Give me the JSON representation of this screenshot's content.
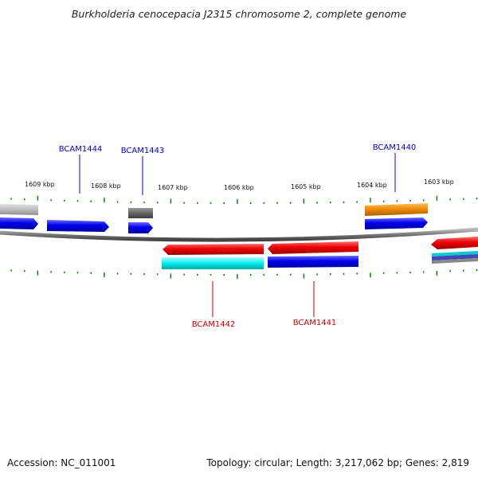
{
  "title": "Burkholderia cenocepacia J2315 chromosome 2, complete genome",
  "footer": {
    "accession": "Accession: NC_011001",
    "topology": "Topology: circular; Length: 3,217,062 bp; Genes: 2,819"
  },
  "scale_labels": [
    {
      "id": "s1609",
      "text": "1609 kbp"
    },
    {
      "id": "s1608",
      "text": "1608 kbp"
    },
    {
      "id": "s1607",
      "text": "1607 kbp"
    },
    {
      "id": "s1606",
      "text": "1606 kbp"
    },
    {
      "id": "s1605",
      "text": "1605 kbp"
    },
    {
      "id": "s1604",
      "text": "1604 kbp"
    },
    {
      "id": "s1603",
      "text": "1603 kbp"
    }
  ],
  "gene_labels": [
    {
      "id": "g1444",
      "text": "BCAM1444",
      "strand": "forward"
    },
    {
      "id": "g1443",
      "text": "BCAM1443",
      "strand": "forward"
    },
    {
      "id": "g1440",
      "text": "BCAM1440",
      "strand": "forward"
    },
    {
      "id": "g1442",
      "text": "BCAM1442",
      "strand": "reverse"
    },
    {
      "id": "g1441",
      "text": "BCAM1441",
      "strand": "reverse"
    }
  ],
  "colors": {
    "forward_label": "#0000cc",
    "reverse_label": "#cc0000",
    "cds_forward": "#0000ee",
    "cds_reverse": "#ee0000",
    "orf_gray": "#bbbbbb",
    "orf_dark": "#666666",
    "orf_orange": "#ee8800",
    "orf_cyan": "#00eeee",
    "backbone": "#888888",
    "tick": "#007700"
  }
}
